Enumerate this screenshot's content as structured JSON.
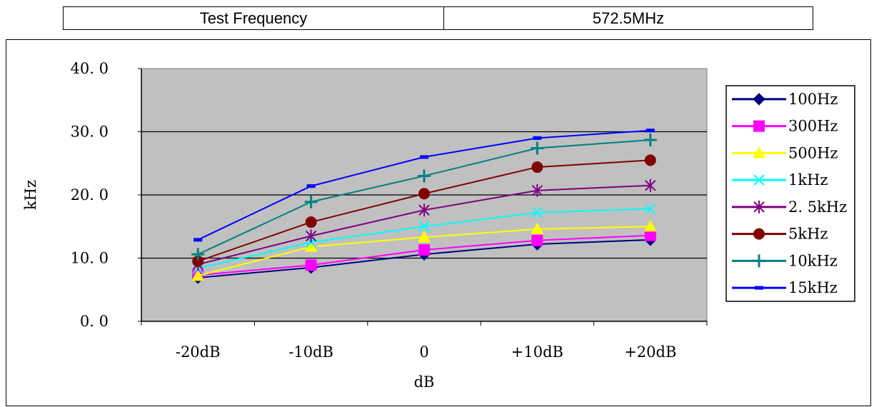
{
  "header": {
    "label": "Test Frequency",
    "value": "572.5MHz"
  },
  "chart_data": {
    "type": "line",
    "title": "",
    "xlabel": "dB",
    "ylabel": "kHz",
    "categories": [
      "-20dB",
      "-10dB",
      "0",
      "+10dB",
      "+20dB"
    ],
    "ylim": [
      0,
      40
    ],
    "yticks": [
      "0. 0",
      "10. 0",
      "20. 0",
      "30. 0",
      "40. 0"
    ],
    "grid": true,
    "legend_position": "right",
    "plot_background": "#c0c0c0",
    "series": [
      {
        "name": "100Hz",
        "color": "#000080",
        "marker": "diamond",
        "values": [
          6.9,
          8.5,
          10.6,
          12.2,
          12.9
        ]
      },
      {
        "name": "300Hz",
        "color": "#ff00ff",
        "marker": "square",
        "values": [
          7.3,
          8.9,
          11.3,
          12.8,
          13.6
        ]
      },
      {
        "name": "500Hz",
        "color": "#ffff00",
        "marker": "triangle",
        "values": [
          7.2,
          11.8,
          13.3,
          14.6,
          15.0
        ]
      },
      {
        "name": "1kHz",
        "color": "#00ffff",
        "marker": "x",
        "values": [
          8.4,
          12.5,
          15.0,
          17.2,
          17.8
        ]
      },
      {
        "name": "2. 5kHz",
        "color": "#800080",
        "marker": "asterisk",
        "values": [
          9.0,
          13.5,
          17.6,
          20.7,
          21.5
        ]
      },
      {
        "name": "5kHz",
        "color": "#800000",
        "marker": "circle",
        "values": [
          9.5,
          15.7,
          20.2,
          24.4,
          25.5
        ]
      },
      {
        "name": "10kHz",
        "color": "#008080",
        "marker": "plus",
        "values": [
          10.6,
          18.9,
          23.0,
          27.4,
          28.7
        ]
      },
      {
        "name": "15kHz",
        "color": "#0000ff",
        "marker": "dash",
        "values": [
          12.9,
          21.4,
          26.0,
          29.0,
          30.2
        ]
      }
    ]
  }
}
